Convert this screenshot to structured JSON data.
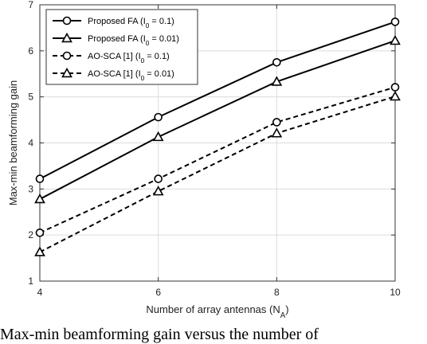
{
  "chart_data": {
    "type": "line",
    "xlabel": "Number of array antennas (N_A)",
    "ylabel": "Max-min beamforming gain",
    "x": [
      4,
      6,
      8,
      10
    ],
    "xlim": [
      4,
      10
    ],
    "ylim": [
      1,
      7
    ],
    "xticks": [
      "4",
      "6",
      "8",
      "10"
    ],
    "yticks": [
      "1",
      "2",
      "3",
      "4",
      "5",
      "6",
      "7"
    ],
    "grid": true,
    "legend_position": "top-left",
    "series": [
      {
        "name": "Proposed FA (I_0 = 0.1)",
        "values": [
          3.22,
          4.56,
          5.75,
          6.63
        ],
        "style": "solid",
        "marker": "circle"
      },
      {
        "name": "Proposed FA (I_0 = 0.01)",
        "values": [
          2.78,
          4.13,
          5.33,
          6.22
        ],
        "style": "solid",
        "marker": "triangle"
      },
      {
        "name": "AO-SCA [1] (I_0 = 0.1)",
        "values": [
          2.05,
          3.22,
          4.45,
          5.21
        ],
        "style": "dashed",
        "marker": "circle"
      },
      {
        "name": "AO-SCA [1] (I_0 = 0.01)",
        "values": [
          1.63,
          2.95,
          4.21,
          5.01
        ],
        "style": "dashed",
        "marker": "triangle"
      }
    ]
  },
  "caption": "Max-min beamforming gain versus the number of"
}
